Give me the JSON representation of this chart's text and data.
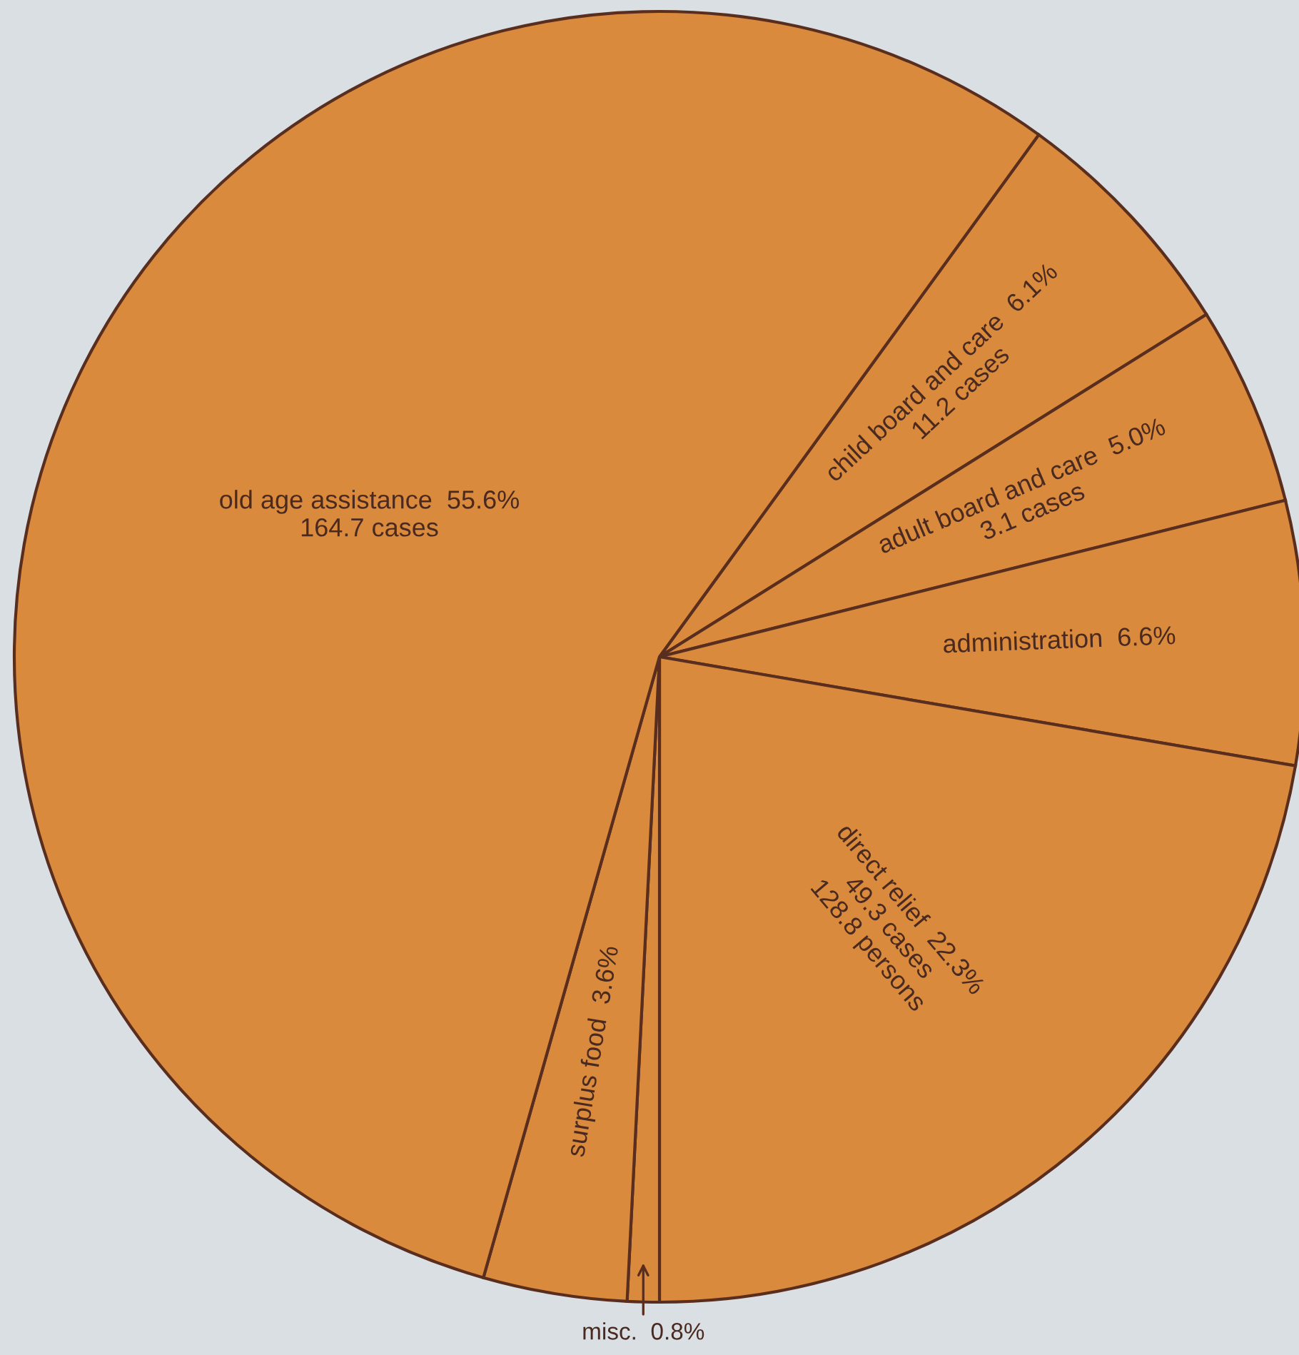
{
  "chart_data": {
    "type": "pie",
    "categories": [
      "child board and care",
      "adult board and care",
      "administration",
      "direct relief",
      "misc.",
      "surplus food",
      "old age assistance"
    ],
    "values": [
      6.1,
      5.0,
      6.6,
      22.3,
      0.8,
      3.6,
      55.6
    ],
    "value_labels": [
      "6.1%",
      "5.0%",
      "6.6%",
      "22.3%",
      "0.8%",
      "3.6%",
      "55.6%"
    ],
    "colors": [
      "#d98a3c",
      "#d98a3c",
      "#d98a3c",
      "#d98a3c",
      "#d98a3c",
      "#d98a3c",
      "#d98a3c"
    ],
    "annotations": [
      {
        "text": "11.2 cases",
        "x": "child board and care"
      },
      {
        "text": "3.1 cases",
        "x": "adult board and care"
      },
      {
        "text": "49.3 cases\n128.8 persons",
        "x": "direct relief"
      },
      {
        "text": "164.7 cases",
        "x": "old age assistance"
      }
    ]
  }
}
